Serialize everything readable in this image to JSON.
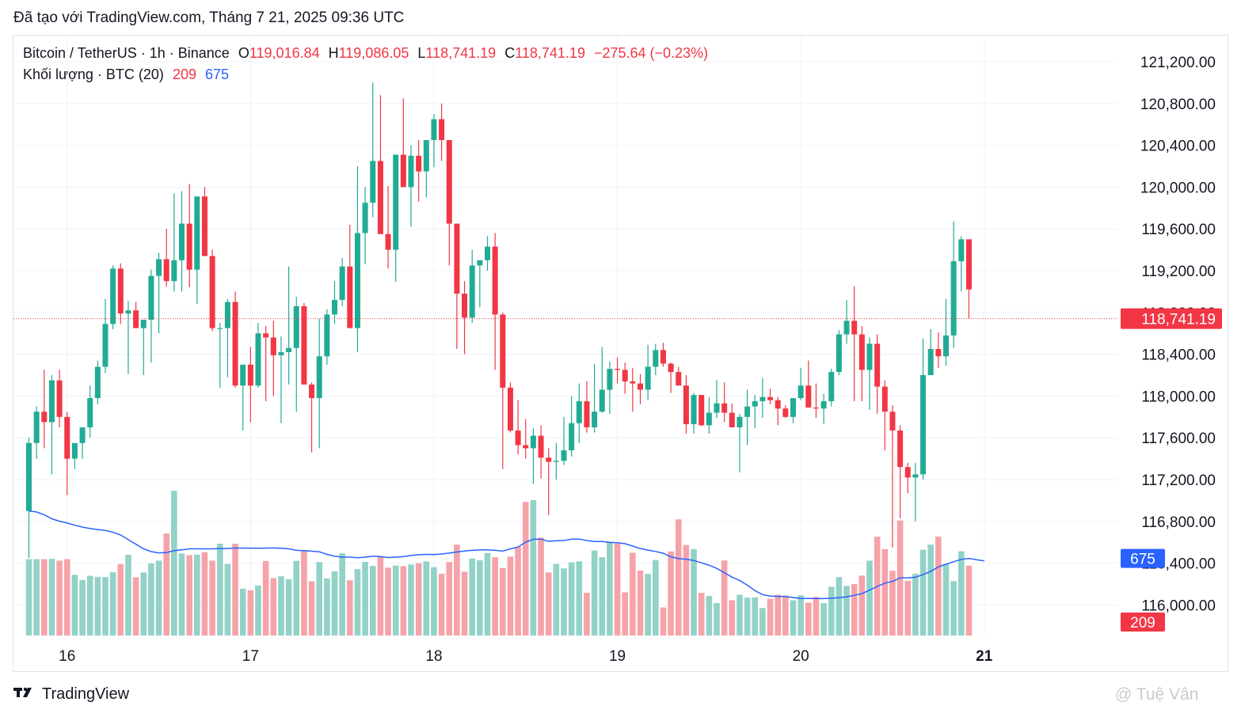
{
  "header": {
    "created_text": "Đã tạo với TradingView.com, Tháng 7 21, 2025 09:36 UTC"
  },
  "legend": {
    "symbol": "Bitcoin / TetherUS · 1h · Binance",
    "o_label": "O",
    "o_value": "119,016.84",
    "h_label": "H",
    "h_value": "119,086.05",
    "l_label": "L",
    "l_value": "118,741.19",
    "c_label": "C",
    "c_value": "118,741.19",
    "change": "−275.64 (−0.23%)",
    "volume_label": "Khối lượng · BTC (20)",
    "volume_value": "209",
    "volume_ma_value": "675"
  },
  "footer": {
    "logo_text": "TradingView",
    "watermark": "@ Tuệ Vân"
  },
  "colors": {
    "up": "#22ab94",
    "down": "#f23645",
    "vol_up": "#92d2c7",
    "vol_down": "#f5a3a9",
    "ma": "#2962ff",
    "grid": "#f0f3fa"
  },
  "chart_data": {
    "type": "candlestick",
    "interval": "1h",
    "price_axis": {
      "range": [
        115700,
        121450
      ],
      "ticks": [
        116000,
        116400,
        116800,
        117200,
        117600,
        118000,
        118400,
        118800,
        119200,
        119600,
        120000,
        120400,
        120800,
        121200
      ],
      "tick_labels": [
        "116,000.00",
        "116,400.00",
        "116,800.00",
        "117,200.00",
        "117,600.00",
        "118,000.00",
        "118,400.00",
        "118,800.00",
        "119,200.00",
        "119,600.00",
        "120,000.00",
        "120,400.00",
        "120,800.00",
        "121,200.00"
      ],
      "last_price": 118741.19,
      "last_price_label": "118,741.19"
    },
    "time_axis": {
      "labels": [
        "16",
        "17",
        "18",
        "19",
        "20",
        "21"
      ],
      "label_bar_index": [
        5,
        29,
        53,
        77,
        101,
        125
      ],
      "bold_label": "21"
    },
    "ohlc_open": [
      116900,
      117550,
      117850,
      117750,
      118150,
      117800,
      117400,
      117550,
      117700,
      117980,
      118280,
      118690,
      119220,
      118790,
      118820,
      118650,
      118730,
      119150,
      119310,
      119100,
      119300,
      119650,
      119210,
      119910,
      119340,
      118650,
      118650,
      118900,
      118100,
      118300,
      118100,
      118600,
      118560,
      118390,
      118420,
      118460,
      118860,
      118110,
      117980,
      118380,
      118780,
      118920,
      119240,
      118650,
      119560,
      119850,
      120250,
      119550,
      119400,
      120310,
      120000,
      120300,
      120150,
      120450,
      120650,
      120450,
      119650,
      118980,
      118750,
      119250,
      119300,
      119430,
      118780,
      118080,
      117670,
      117530,
      117500,
      117620,
      117410,
      117370,
      117380,
      117480,
      117740,
      117950,
      117700,
      117850,
      118060,
      118260,
      118250,
      118140,
      118120,
      118060,
      118280,
      118440,
      118310,
      118230,
      118100,
      117730,
      118010,
      117720,
      117840,
      117930,
      117840,
      117700,
      117800,
      117900,
      117950,
      117990,
      117960,
      117880,
      117800,
      117980,
      118100,
      117890,
      117880,
      117950,
      118230,
      118590,
      118720,
      118590,
      118250,
      118500,
      118090,
      117850,
      117670,
      117320,
      117220,
      117250,
      118200,
      118450,
      118380,
      118580,
      119290,
      119500
    ],
    "ohlc_high": [
      117600,
      117900,
      118250,
      118200,
      118250,
      117850,
      117450,
      117650,
      118100,
      118340,
      118930,
      119250,
      119270,
      118910,
      118900,
      118730,
      119210,
      119370,
      119600,
      119940,
      119960,
      120030,
      119510,
      120000,
      119400,
      118700,
      118930,
      119000,
      118280,
      118470,
      118700,
      118670,
      118720,
      118570,
      119240,
      118950,
      118890,
      118130,
      118740,
      118830,
      119100,
      119320,
      119640,
      120200,
      120000,
      121000,
      120880,
      120010,
      120010,
      120850,
      120400,
      120450,
      120450,
      120700,
      120800,
      120450,
      119650,
      119100,
      119400,
      119300,
      119530,
      119560,
      118800,
      118130,
      117960,
      117780,
      117690,
      117720,
      117500,
      117550,
      117800,
      118000,
      118120,
      118140,
      118310,
      118470,
      118330,
      118370,
      118320,
      118270,
      118210,
      118490,
      118500,
      118510,
      118320,
      118280,
      118200,
      118030,
      118010,
      117990,
      118150,
      118130,
      117930,
      117830,
      118060,
      118010,
      118170,
      118070,
      117990,
      117910,
      117980,
      118270,
      118340,
      118120,
      118020,
      118260,
      118630,
      118920,
      119050,
      118670,
      118560,
      118590,
      118150,
      117910,
      117720,
      117360,
      117360,
      118550,
      118640,
      118610,
      118930,
      119670,
      119530,
      119100
    ],
    "ohlc_low": [
      116450,
      117400,
      117500,
      117250,
      117700,
      117050,
      117300,
      117400,
      117600,
      117920,
      118220,
      118640,
      118690,
      118210,
      118680,
      118200,
      118320,
      118600,
      119050,
      119000,
      119000,
      119040,
      118880,
      119500,
      118620,
      118080,
      118180,
      118080,
      117670,
      117750,
      118080,
      117950,
      118000,
      117740,
      118110,
      117850,
      118300,
      117460,
      117500,
      118300,
      118690,
      118860,
      119120,
      118420,
      119260,
      119710,
      119890,
      119220,
      119090,
      120050,
      119620,
      119860,
      119900,
      120190,
      120250,
      119250,
      118450,
      118400,
      118700,
      118850,
      119200,
      118250,
      117300,
      117650,
      117440,
      117400,
      117160,
      117210,
      116860,
      117200,
      117340,
      117420,
      117550,
      117650,
      117650,
      117840,
      117830,
      118120,
      118020,
      117850,
      117920,
      117960,
      118200,
      118280,
      118030,
      118140,
      117640,
      117640,
      117710,
      117640,
      117790,
      117750,
      117720,
      117270,
      117530,
      117690,
      117790,
      117920,
      117720,
      117790,
      117740,
      117960,
      117930,
      117790,
      117730,
      117900,
      118200,
      118500,
      117950,
      117950,
      117870,
      117830,
      117480,
      116550,
      116830,
      117070,
      116800,
      117200,
      118400,
      118270,
      118290,
      118460,
      119000,
      118740
    ],
    "ohlc_close": [
      117550,
      117850,
      117750,
      118150,
      117800,
      117400,
      117550,
      117700,
      117980,
      118280,
      118690,
      119220,
      118790,
      118820,
      118650,
      118730,
      119150,
      119310,
      119100,
      119300,
      119650,
      119210,
      119910,
      119340,
      118650,
      118650,
      118900,
      118100,
      118300,
      118100,
      118600,
      118560,
      118390,
      118420,
      118460,
      118860,
      118110,
      117980,
      118380,
      118780,
      118920,
      119240,
      118650,
      119560,
      119850,
      120250,
      119550,
      119400,
      120310,
      120000,
      120300,
      120150,
      120450,
      120650,
      120450,
      119650,
      118980,
      118750,
      119250,
      119300,
      119430,
      118780,
      118080,
      117670,
      117530,
      117500,
      117620,
      117410,
      117370,
      117380,
      117480,
      117740,
      117950,
      117700,
      117850,
      118060,
      118260,
      118250,
      118140,
      118120,
      118060,
      118280,
      118440,
      118310,
      118230,
      118100,
      117730,
      118010,
      117720,
      117840,
      117930,
      117840,
      117700,
      117800,
      117900,
      117950,
      117990,
      117960,
      117880,
      117800,
      117980,
      118100,
      117890,
      117880,
      117950,
      118230,
      118590,
      118720,
      118590,
      118250,
      118500,
      118090,
      117850,
      117670,
      117320,
      117220,
      117250,
      118200,
      118450,
      118380,
      118580,
      119290,
      119500,
      119020
    ],
    "last_bar": {
      "open": 119016.84,
      "high": 119086.05,
      "low": 118741.19,
      "close": 118741.19
    },
    "volume": [
      4140,
      4140,
      4140,
      4160,
      4060,
      4140,
      3290,
      3010,
      3240,
      3180,
      3170,
      3430,
      3870,
      4380,
      3150,
      3420,
      3910,
      4060,
      5530,
      7850,
      4450,
      4360,
      4380,
      4520,
      4060,
      4980,
      3880,
      4980,
      2540,
      2450,
      2710,
      4040,
      3110,
      3210,
      3050,
      4050,
      4630,
      2940,
      3980,
      3100,
      3480,
      4460,
      2990,
      3600,
      3990,
      3780,
      4290,
      3680,
      3790,
      3760,
      3850,
      3920,
      4020,
      3710,
      3350,
      3990,
      4930,
      3460,
      4180,
      4080,
      4470,
      4250,
      3660,
      4280,
      4810,
      7250,
      7340,
      5310,
      3420,
      3880,
      3640,
      3970,
      4020,
      2320,
      4610,
      4250,
      5080,
      4990,
      2340,
      4490,
      3520,
      3340,
      4090,
      1520,
      4560,
      6300,
      4910,
      4690,
      2310,
      2140,
      1760,
      4070,
      1910,
      2210,
      2050,
      2070,
      1490,
      1990,
      2210,
      2160,
      1910,
      2180,
      1790,
      2090,
      1760,
      2640,
      3170,
      2690,
      2790,
      3250,
      4060,
      5360,
      4690,
      3510,
      6240,
      2970,
      3350,
      4650,
      4930,
      5360,
      3880,
      2950,
      4570,
      3790,
      1420
    ],
    "volume_ma": [
      6750,
      6700,
      6550,
      6330,
      6200,
      6100,
      5980,
      5880,
      5800,
      5750,
      5700,
      5600,
      5450,
      5200,
      4950,
      4700,
      4550,
      4480,
      4500,
      4600,
      4650,
      4700,
      4700,
      4700,
      4700,
      4720,
      4720,
      4750,
      4740,
      4740,
      4730,
      4740,
      4750,
      4730,
      4700,
      4620,
      4600,
      4570,
      4540,
      4400,
      4300,
      4250,
      4250,
      4220,
      4250,
      4300,
      4280,
      4230,
      4250,
      4280,
      4340,
      4380,
      4400,
      4390,
      4420,
      4470,
      4530,
      4580,
      4620,
      4640,
      4640,
      4620,
      4580,
      4700,
      4800,
      5060,
      5220,
      5230,
      5110,
      5140,
      5150,
      5230,
      5230,
      5150,
      5100,
      5100,
      5050,
      5030,
      4980,
      4850,
      4720,
      4630,
      4560,
      4460,
      4270,
      4170,
      4140,
      4070,
      3940,
      3810,
      3640,
      3410,
      3170,
      2980,
      2730,
      2430,
      2220,
      2140,
      2120,
      2110,
      2060,
      2010,
      2010,
      2010,
      2000,
      2020,
      2050,
      2100,
      2180,
      2270,
      2460,
      2660,
      2840,
      2930,
      3130,
      3130,
      3160,
      3300,
      3480,
      3720,
      3870,
      4000,
      4130,
      4180,
      4110,
      4050
    ],
    "volume_axis": {
      "current_volume_label": "209",
      "volume_ma_label": "675"
    }
  }
}
